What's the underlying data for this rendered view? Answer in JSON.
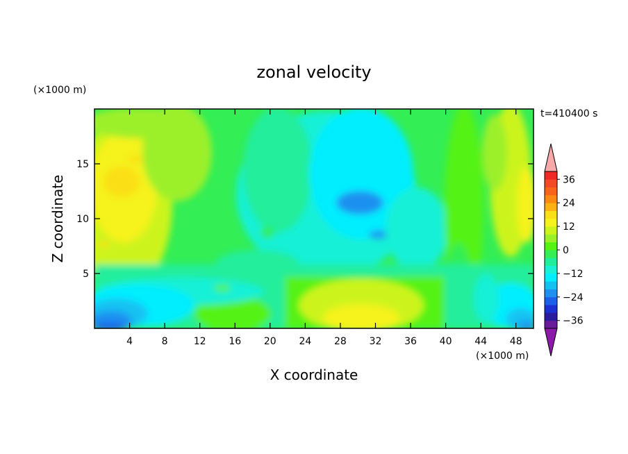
{
  "chart_data": {
    "type": "heatmap",
    "title": "zonal velocity",
    "xlabel": "X coordinate",
    "ylabel": "Z coordinate",
    "x_unit": "(×1000 m)",
    "y_unit": "(×1000 m)",
    "time_label": "t=410400 s",
    "xlim": [
      0,
      50
    ],
    "ylim": [
      0,
      20
    ],
    "xticks": [
      4,
      8,
      12,
      16,
      20,
      24,
      28,
      32,
      36,
      40,
      44,
      48
    ],
    "yticks": [
      5,
      10,
      15
    ],
    "colorbar": {
      "levels": [
        -40,
        -36,
        -32,
        -28,
        -24,
        -20,
        -16,
        -12,
        -8,
        -4,
        0,
        4,
        8,
        12,
        16,
        20,
        24,
        28,
        32,
        36,
        40
      ],
      "tick_labels": [
        36,
        24,
        12,
        0,
        -12,
        -24,
        -36
      ],
      "colors": [
        "#6a1b9a",
        "#2a1aa0",
        "#1c2fd0",
        "#1c5fe8",
        "#1e90f0",
        "#14c2f2",
        "#00eeff",
        "#19f0d6",
        "#21ee9c",
        "#33ee55",
        "#55f212",
        "#9cf02a",
        "#ccf41a",
        "#f6f21c",
        "#fadf18",
        "#fbb016",
        "#fc8a12",
        "#f8651a",
        "#f24a26",
        "#ef2a26"
      ],
      "over_color": "#f7a8a8",
      "under_color": "#8c1aa8"
    },
    "grid": false
  }
}
